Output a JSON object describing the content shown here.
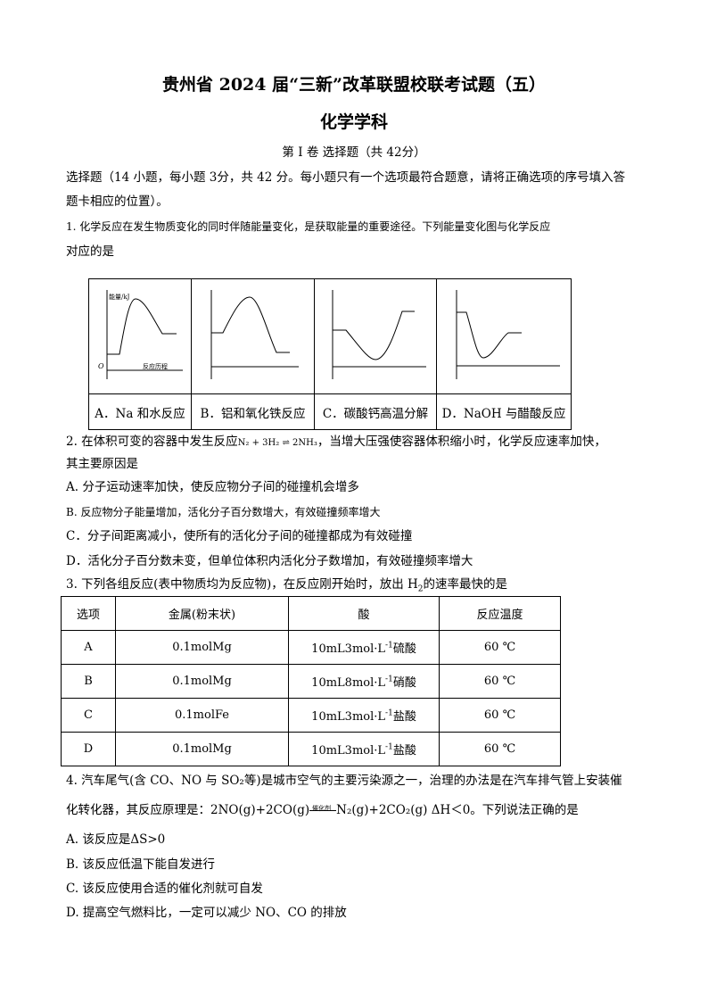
{
  "header": {
    "title": "贵州省 2024 届“三新”改革联盟校联考试题（五）",
    "subject": "化学学科",
    "section": "第 I 卷 选择题（共 42分）"
  },
  "instructions": {
    "line1": "选择题（14 小题，每小题 3分，共 42 分。每小题只有一个选项最符合题意，请将正确选项的序号填入答",
    "line2": "题卡相应的位置）。"
  },
  "q1": {
    "line1": "1.  化学反应在发生物质变化的同时伴随能量变化，是获取能量的重要途径。下列能量变化图与化学反应",
    "line2": "对应的是",
    "graph_ylabel": "能量/kJ",
    "graph_xlabel": "反应历程",
    "graph_origin": "O",
    "options": [
      "A．Na 和水反应",
      "B．铝和氧化铁反应",
      "C．碳酸钙高温分解",
      "D．NaOH 与醋酸反应"
    ]
  },
  "q2": {
    "line1_pre": "2.  在体积可变的容器中发生反应",
    "equation": "N₂ + 3H₂ ⇌ 2NH₃",
    "line1_post": "，当增大压强使容器体积缩小时，化学反应速率加快，",
    "line2": "其主要原因是",
    "options": [
      "A.  分子运动速率加快，使反应物分子间的碰撞机会增多",
      "B.  反应物分子能量增加，活化分子百分数增大，有效碰撞频率增大",
      "C．分子间距离减小，使所有的活化分子间的碰撞都成为有效碰撞",
      "D．活化分子百分数未变，但单位体积内活化分子数增加，有效碰撞频率增大"
    ]
  },
  "q3": {
    "stem_pre": "3.  下列各组反应(表中物质均为反应物)，在反应刚开始时，放出 H",
    "stem_sub": "2",
    "stem_post": "的速率最快的是",
    "headers": [
      "选项",
      "金属(粉末状)",
      "酸",
      "反应温度"
    ],
    "rows": [
      {
        "option": "A",
        "metal": "0.1molMg",
        "acid_pre": "10mL3mol·L",
        "acid_sup": "-1",
        "acid_post": "硫酸",
        "temp": "60 ℃"
      },
      {
        "option": "B",
        "metal": "0.1molMg",
        "acid_pre": "10mL8mol·L",
        "acid_sup": "-1",
        "acid_post": "硝酸",
        "temp": "60 ℃"
      },
      {
        "option": "C",
        "metal": "0.1molFe",
        "acid_pre": "10mL3mol·L",
        "acid_sup": "-1",
        "acid_post": "盐酸",
        "temp": "60 ℃"
      },
      {
        "option": "D",
        "metal": "0.1molMg",
        "acid_pre": "10mL3mol·L",
        "acid_sup": "-1",
        "acid_post": "盐酸",
        "temp": "60 ℃"
      }
    ]
  },
  "q4": {
    "line1": "4.  汽车尾气(含 CO、NO 与 SO₂等)是城市空气的主要污染源之一，治理的办法是在汽车排气管上安装催",
    "line2_pre": "化转化器，其反应原理是：2NO(g)+2CO(g)",
    "catalyst": "催化剂",
    "line2_post": "N₂(g)+2CO₂(g)  ΔH＜0。下列说法正确的是",
    "options": [
      "A.  该反应是ΔS>0",
      "B.  该反应低温下能自发进行",
      "C.  该反应使用合适的催化剂就可自发",
      "D.  提高空气燃料比，一定可以减少  NO、CO 的排放"
    ]
  }
}
